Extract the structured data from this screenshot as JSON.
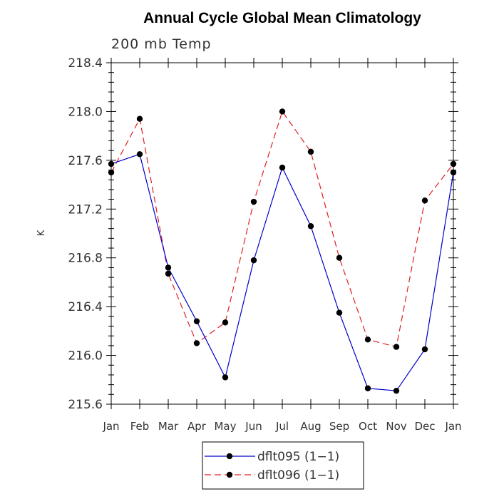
{
  "chart_data": {
    "type": "line",
    "title": "Annual Cycle Global Mean Climatology",
    "subtitle": "200 mb Temp",
    "xlabel": "",
    "ylabel": "K",
    "categories": [
      "Jan",
      "Feb",
      "Mar",
      "Apr",
      "May",
      "Jun",
      "Jul",
      "Aug",
      "Sep",
      "Oct",
      "Nov",
      "Dec",
      "Jan"
    ],
    "ylim": [
      215.6,
      218.4
    ],
    "yticks": [
      "215.6",
      "216.0",
      "216.4",
      "216.8",
      "217.2",
      "217.6",
      "218.0",
      "218.4"
    ],
    "grid": false,
    "legend_position": "bottom-center",
    "series": [
      {
        "name": "dflt095 (1−1)",
        "color": "#0000cc",
        "style": "solid",
        "values": [
          217.57,
          217.65,
          216.72,
          216.28,
          215.82,
          216.78,
          217.54,
          217.06,
          216.35,
          215.73,
          215.71,
          216.05,
          217.5
        ]
      },
      {
        "name": "dflt096 (1−1)",
        "color": "#e02020",
        "style": "dashed",
        "values": [
          217.5,
          217.94,
          216.67,
          216.1,
          216.27,
          217.26,
          218.0,
          217.67,
          216.8,
          216.13,
          216.07,
          217.27,
          217.57
        ]
      }
    ]
  }
}
